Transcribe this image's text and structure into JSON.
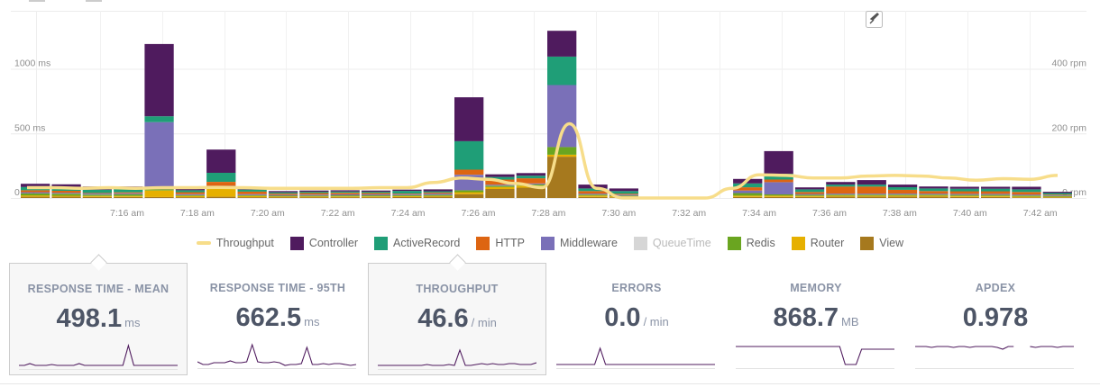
{
  "chart_data": {
    "type": "bar",
    "title": "",
    "stacked": true,
    "x_labels": [
      "7:16 am",
      "7:18 am",
      "7:20 am",
      "7:22 am",
      "7:24 am",
      "7:26 am",
      "7:28 am",
      "7:30 am",
      "7:32 am",
      "7:34 am",
      "7:36 am",
      "7:38 am",
      "7:40 am",
      "7:42 am"
    ],
    "y_left": {
      "ticks": [
        "0 ms",
        "500 ms",
        "1000 ms"
      ],
      "range": [
        0,
        1450
      ]
    },
    "y_right": {
      "ticks": [
        "0 rpm",
        "200 rpm",
        "400 rpm"
      ],
      "range": [
        0,
        580
      ]
    },
    "series": [
      {
        "name": "View",
        "color": "#a6791e",
        "values": [
          10,
          10,
          8,
          8,
          8,
          6,
          10,
          6,
          6,
          6,
          6,
          6,
          8,
          10,
          30,
          70,
          80,
          320,
          8,
          5,
          0,
          0,
          0,
          8,
          8,
          8,
          10,
          10,
          10,
          10,
          8,
          8,
          5,
          5
        ]
      },
      {
        "name": "Router",
        "color": "#e6b000",
        "values": [
          10,
          8,
          8,
          8,
          50,
          10,
          60,
          10,
          6,
          6,
          6,
          6,
          6,
          6,
          15,
          15,
          15,
          15,
          10,
          8,
          0,
          0,
          0,
          10,
          10,
          8,
          8,
          8,
          8,
          8,
          8,
          8,
          6,
          5
        ]
      },
      {
        "name": "Redis",
        "color": "#6aa520",
        "values": [
          15,
          15,
          10,
          12,
          10,
          6,
          15,
          6,
          6,
          6,
          8,
          8,
          8,
          8,
          15,
          10,
          10,
          60,
          8,
          5,
          0,
          0,
          0,
          20,
          10,
          8,
          8,
          8,
          8,
          8,
          8,
          8,
          8,
          6
        ]
      },
      {
        "name": "QueueTime",
        "color": "#d6d6d6",
        "values": [
          0,
          0,
          0,
          0,
          0,
          0,
          0,
          0,
          0,
          0,
          0,
          0,
          0,
          0,
          0,
          0,
          0,
          0,
          0,
          0,
          0,
          0,
          0,
          0,
          0,
          0,
          0,
          0,
          0,
          0,
          0,
          0,
          0,
          0
        ]
      },
      {
        "name": "Middleware",
        "color": "#7a70b8",
        "values": [
          10,
          8,
          8,
          8,
          520,
          8,
          10,
          8,
          6,
          8,
          8,
          8,
          8,
          10,
          120,
          8,
          8,
          480,
          8,
          8,
          0,
          0,
          0,
          20,
          95,
          8,
          8,
          8,
          8,
          8,
          8,
          8,
          8,
          5
        ]
      },
      {
        "name": "HTTP",
        "color": "#dd6512",
        "values": [
          15,
          15,
          5,
          8,
          0,
          15,
          30,
          20,
          10,
          12,
          12,
          10,
          5,
          8,
          40,
          40,
          40,
          0,
          20,
          8,
          0,
          0,
          0,
          25,
          20,
          15,
          55,
          55,
          30,
          20,
          20,
          20,
          20,
          5
        ]
      },
      {
        "name": "ActiveRecord",
        "color": "#1f9e77",
        "values": [
          25,
          25,
          25,
          25,
          45,
          15,
          70,
          15,
          10,
          10,
          10,
          10,
          20,
          10,
          220,
          20,
          20,
          220,
          20,
          20,
          0,
          0,
          0,
          30,
          45,
          20,
          15,
          15,
          20,
          20,
          20,
          20,
          20,
          12
        ]
      },
      {
        "name": "Controller",
        "color": "#4f1b5e",
        "values": [
          25,
          25,
          25,
          20,
          560,
          20,
          180,
          20,
          10,
          10,
          10,
          10,
          10,
          15,
          340,
          20,
          20,
          200,
          30,
          20,
          0,
          0,
          0,
          35,
          175,
          15,
          20,
          35,
          20,
          15,
          15,
          15,
          20,
          10
        ]
      }
    ],
    "throughput_rpm": [
      32,
      32,
      30,
      32,
      30,
      32,
      32,
      33,
      32,
      30,
      30,
      30,
      30,
      32,
      32,
      48,
      62,
      58,
      45,
      32,
      230,
      30,
      0,
      0,
      0,
      0,
      30,
      72,
      70,
      62,
      62,
      68,
      70,
      68,
      62,
      55,
      60,
      58,
      70
    ]
  },
  "legend": [
    {
      "label": "Throughput",
      "color": "#f7dd8a",
      "kind": "line"
    },
    {
      "label": "Controller",
      "color": "#4f1b5e",
      "kind": "box"
    },
    {
      "label": "ActiveRecord",
      "color": "#1f9e77",
      "kind": "box"
    },
    {
      "label": "HTTP",
      "color": "#dd6512",
      "kind": "box"
    },
    {
      "label": "Middleware",
      "color": "#7a70b8",
      "kind": "box"
    },
    {
      "label": "QueueTime",
      "color": "#d6d6d6",
      "kind": "box",
      "disabled": true
    },
    {
      "label": "Redis",
      "color": "#6aa520",
      "kind": "box"
    },
    {
      "label": "Router",
      "color": "#e6b000",
      "kind": "box"
    },
    {
      "label": "View",
      "color": "#a6791e",
      "kind": "box"
    }
  ],
  "metrics": [
    {
      "title": "RESPONSE TIME - MEAN",
      "value": "498.1",
      "unit": "ms",
      "selected": true,
      "spark": [
        5,
        5,
        7,
        5,
        5,
        5,
        6,
        5,
        5,
        5,
        5,
        7,
        5,
        5,
        5,
        5,
        5,
        5,
        5,
        5,
        27,
        5,
        5,
        5,
        5,
        5,
        5,
        5,
        5,
        5
      ]
    },
    {
      "title": "RESPONSE TIME - 95TH",
      "value": "662.5",
      "unit": "ms",
      "selected": false,
      "spark": [
        8,
        5,
        5,
        7,
        7,
        7,
        9,
        7,
        7,
        8,
        27,
        8,
        7,
        7,
        8,
        7,
        4,
        5,
        5,
        6,
        24,
        5,
        5,
        6,
        5,
        6,
        6,
        5,
        4,
        5
      ]
    },
    {
      "title": "THROUGHPUT",
      "value": "46.6",
      "unit": "/ min",
      "selected": true,
      "spark": [
        5,
        5,
        5,
        5,
        5,
        5,
        5,
        5,
        5,
        6,
        5,
        5,
        5,
        6,
        5,
        22,
        5,
        5,
        6,
        7,
        6,
        7,
        6,
        6,
        7,
        7,
        6,
        6,
        6,
        8
      ]
    },
    {
      "title": "ERRORS",
      "value": "0.0",
      "unit": "/ min",
      "selected": false,
      "spark": [
        5,
        5,
        5,
        5,
        5,
        5,
        5,
        5,
        23,
        5,
        5,
        5,
        5,
        5,
        5,
        5,
        5,
        5,
        5,
        5,
        5,
        5,
        5,
        5,
        5,
        5,
        5,
        5,
        5,
        5
      ]
    },
    {
      "title": "MEMORY",
      "value": "868.7",
      "unit": "MB",
      "selected": false,
      "spark": [
        25,
        25,
        25,
        25,
        25,
        25,
        25,
        25,
        25,
        25,
        25,
        25,
        25,
        25,
        25,
        25,
        25,
        25,
        25,
        25,
        5,
        5,
        5,
        22,
        22,
        22,
        22,
        22,
        22,
        22
      ]
    },
    {
      "title": "APDEX",
      "value": "0.978",
      "unit": "",
      "selected": false,
      "spark": [
        25,
        25,
        25,
        24,
        25,
        25,
        25,
        24,
        25,
        25,
        24,
        25,
        25,
        25,
        25,
        24,
        22,
        25,
        25,
        null,
        null,
        25,
        24,
        25,
        25,
        25,
        24,
        25,
        25,
        25
      ]
    }
  ]
}
